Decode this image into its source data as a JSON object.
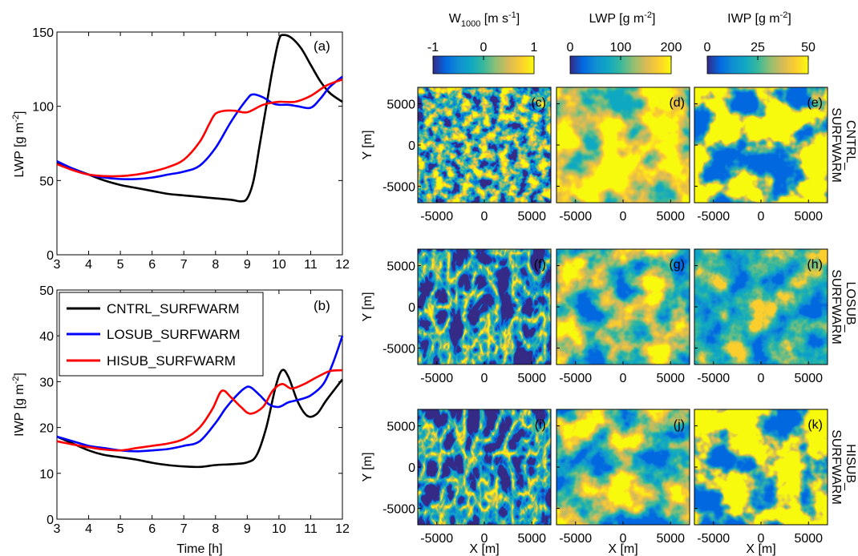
{
  "chart_data": [
    {
      "type": "line",
      "panel": "(a)",
      "xlabel": "",
      "ylabel": "LWP [g m-2]",
      "xlim": [
        3,
        12
      ],
      "ylim": [
        0,
        150
      ],
      "xticks": [
        "3",
        "4",
        "5",
        "6",
        "7",
        "8",
        "9",
        "10",
        "11",
        "12"
      ],
      "yticks": [
        "0",
        "50",
        "100",
        "150"
      ],
      "series": [
        {
          "name": "CNTRL_SURFWARM",
          "color": "#000000",
          "x": [
            3,
            3.5,
            4,
            4.5,
            5,
            5.5,
            6,
            6.5,
            7,
            7.5,
            8,
            8.5,
            8.8,
            9,
            9.2,
            9.4,
            9.6,
            9.8,
            10,
            10.15,
            10.4,
            10.7,
            11,
            11.3,
            11.6,
            12
          ],
          "y": [
            62,
            58,
            54,
            50,
            47,
            45,
            43,
            41,
            40,
            39,
            38,
            37,
            36,
            38,
            50,
            75,
            100,
            125,
            145,
            148,
            146,
            139,
            128,
            117,
            109,
            103
          ]
        },
        {
          "name": "LOSUB_SURFWARM",
          "color": "#0000ff",
          "x": [
            3,
            3.5,
            4,
            4.5,
            5,
            5.5,
            6,
            6.5,
            7,
            7.5,
            8,
            8.5,
            9,
            9.2,
            9.5,
            9.8,
            10,
            10.3,
            10.6,
            11,
            11.3,
            11.6,
            12
          ],
          "y": [
            63,
            58,
            54,
            52,
            51,
            51,
            52,
            54,
            56,
            60,
            72,
            90,
            105,
            108,
            106,
            102,
            101,
            101,
            100,
            99,
            105,
            113,
            120
          ]
        },
        {
          "name": "HISUB_SURFWARM",
          "color": "#ff0000",
          "x": [
            3,
            3.5,
            4,
            4.5,
            5,
            5.5,
            6,
            6.5,
            7,
            7.5,
            7.8,
            8,
            8.3,
            8.6,
            9,
            9.5,
            10,
            10.5,
            11,
            11.5,
            12
          ],
          "y": [
            61,
            57,
            54,
            53,
            53,
            54,
            56,
            59,
            64,
            76,
            88,
            95,
            97,
            97,
            96,
            101,
            103,
            103,
            107,
            114,
            118
          ]
        }
      ]
    },
    {
      "type": "line",
      "panel": "(b)",
      "xlabel": "Time [h]",
      "ylabel": "IWP [g m-2]",
      "xlim": [
        3,
        12
      ],
      "ylim": [
        0,
        50
      ],
      "xticks": [
        "3",
        "4",
        "5",
        "6",
        "7",
        "8",
        "9",
        "10",
        "11",
        "12"
      ],
      "yticks": [
        "0",
        "10",
        "20",
        "30",
        "40",
        "50"
      ],
      "series": [
        {
          "name": "CNTRL_SURFWARM",
          "color": "#000000",
          "x": [
            3,
            3.5,
            4,
            4.5,
            5,
            5.5,
            6,
            6.5,
            7,
            7.5,
            8,
            8.5,
            9,
            9.3,
            9.6,
            9.9,
            10.1,
            10.3,
            10.6,
            10.9,
            11.2,
            11.5,
            12
          ],
          "y": [
            18,
            16.5,
            15,
            14,
            13.5,
            13,
            12.3,
            11.8,
            11.5,
            11.4,
            11.8,
            12,
            12.4,
            14,
            20,
            29,
            32.5,
            31,
            25.5,
            22.5,
            23,
            26,
            30.5
          ]
        },
        {
          "name": "LOSUB_SURFWARM",
          "color": "#0000ff",
          "x": [
            3,
            3.5,
            4,
            4.5,
            5,
            5.5,
            6,
            6.5,
            7,
            7.5,
            8,
            8.3,
            8.6,
            8.9,
            9.1,
            9.4,
            9.7,
            10,
            10.3,
            10.6,
            11,
            11.4,
            11.7,
            12
          ],
          "y": [
            18,
            17,
            16,
            15.5,
            15,
            14.8,
            15,
            15.3,
            16,
            17,
            21,
            24,
            26.5,
            28.5,
            28.8,
            27,
            25,
            24.5,
            25.5,
            26,
            27,
            29.5,
            34,
            40
          ]
        },
        {
          "name": "HISUB_SURFWARM",
          "color": "#ff0000",
          "x": [
            3,
            3.5,
            4,
            4.5,
            5,
            5.5,
            6,
            6.5,
            7,
            7.5,
            7.9,
            8.2,
            8.5,
            8.8,
            9.1,
            9.5,
            9.8,
            10.1,
            10.4,
            10.8,
            11.2,
            11.6,
            12
          ],
          "y": [
            17,
            16.3,
            15.7,
            15.2,
            15,
            15.5,
            16,
            16.5,
            17.5,
            20,
            24,
            28,
            26.5,
            24.5,
            23,
            24.5,
            28,
            29.5,
            28.5,
            29.5,
            31,
            32.3,
            32.5
          ]
        }
      ]
    },
    {
      "type": "heatmap",
      "colorbars": [
        {
          "title": "W",
          "subscript": "1000",
          "units": "[m s",
          "exponent": "-1",
          "close": "]",
          "ticks": [
            "-1",
            "0",
            "1"
          ],
          "range": [
            -1,
            1
          ]
        },
        {
          "title": "LWP [g m",
          "exponent": "-2",
          "close": "]",
          "ticks": [
            "0",
            "100",
            "200"
          ],
          "range": [
            0,
            200
          ]
        },
        {
          "title": "IWP [g m",
          "exponent": "-2",
          "close": "]",
          "ticks": [
            "0",
            "25",
            "50"
          ],
          "range": [
            0,
            50
          ]
        }
      ],
      "colormap": [
        "#352a87",
        "#0268e1",
        "#108ed2",
        "#0fa8c3",
        "#38b89b",
        "#92bf73",
        "#d9ba56",
        "#fcce2e",
        "#f9fb0e"
      ],
      "row_labels": [
        [
          "CNTRL_",
          "SURFWARM"
        ],
        [
          "LOSUB_",
          "SURFWARM"
        ],
        [
          "HISUB_",
          "SURFWARM"
        ]
      ],
      "panels": [
        "(c)",
        "(d)",
        "(e)",
        "(f)",
        "(g)",
        "(h)",
        "(i)",
        "(j)",
        "(k)"
      ],
      "xlabel": "X [m]",
      "ylabel": "Y [m]",
      "xticks": [
        "-5000",
        "0",
        "5000"
      ],
      "yticks": [
        "5000",
        "0",
        "-5000"
      ]
    }
  ]
}
